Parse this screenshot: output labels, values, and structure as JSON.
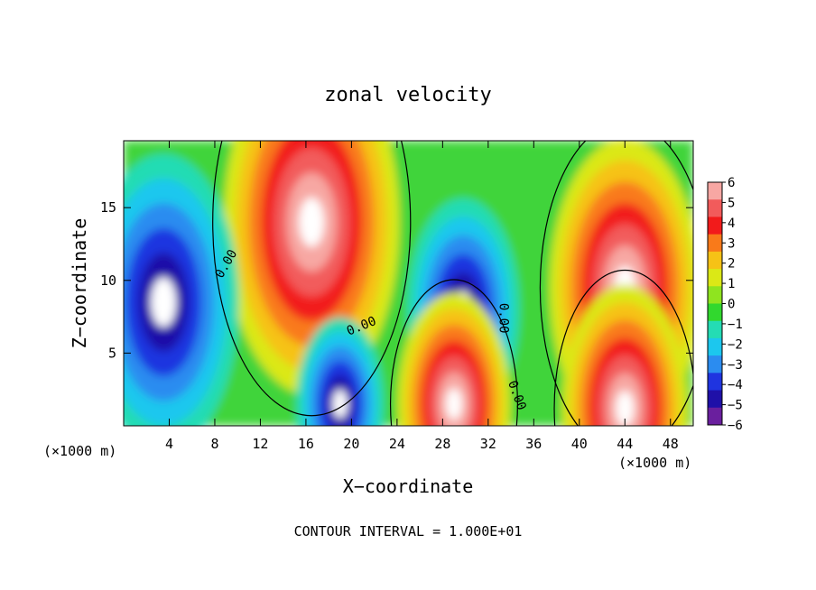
{
  "chart_data": {
    "type": "heatmap",
    "title": "zonal velocity",
    "xlabel": "X−coordinate",
    "ylabel": "Z−coordinate",
    "x_unit": "(×1000 m)",
    "x_unit_right": "(×1000 m)",
    "footer": "CONTOUR INTERVAL = 1.000E+01",
    "xlim": [
      0,
      50
    ],
    "ylim": [
      0,
      19.6
    ],
    "x_ticks": [
      4,
      8,
      12,
      16,
      20,
      24,
      28,
      32,
      36,
      40,
      44,
      48
    ],
    "x_tick_labels": [
      "4",
      "8",
      "12",
      "16",
      "20",
      "24",
      "28",
      "32",
      "36",
      "40",
      "44",
      "48"
    ],
    "y_ticks": [
      5,
      10,
      15
    ],
    "y_tick_labels": [
      "5",
      "10",
      "15"
    ],
    "contour_labels": [
      {
        "text": "0.00",
        "x": 9.3,
        "y": 11.0,
        "angle": -60
      },
      {
        "text": "0.00",
        "x": 21.0,
        "y": 6.6,
        "angle": -22
      },
      {
        "text": "0.00",
        "x": 33.0,
        "y": 7.4,
        "angle": 90
      },
      {
        "text": "0.00",
        "x": 34.2,
        "y": 2.0,
        "angle": 70
      }
    ],
    "colorbar": {
      "values": [
        6,
        5,
        4,
        3,
        2,
        1,
        0,
        -1,
        -2,
        -3,
        -4,
        -5,
        -6
      ],
      "labels": [
        "6",
        "5",
        "4",
        "3",
        "2",
        "1",
        "0",
        "−1",
        "−2",
        "−3",
        "−4",
        "−5",
        "−6"
      ],
      "colors": [
        "#f7a7a3",
        "#f25b5b",
        "#f21b1b",
        "#f97a1a",
        "#f6c216",
        "#dbe816",
        "#8fe41f",
        "#31d82e",
        "#24dcb4",
        "#1cc7ee",
        "#2b8cf0",
        "#1f34e0",
        "#1f10a8",
        "#6a1f9e"
      ]
    },
    "value_range": [
      -6,
      6
    ],
    "note_saturated": "white regions exceed ±6",
    "field_features": [
      {
        "sign": "positive",
        "x": 16.5,
        "z": 14,
        "amp": 14
      },
      {
        "sign": "positive",
        "x": 44,
        "z": 9.5,
        "amp": 12
      },
      {
        "sign": "negative",
        "x": 3.5,
        "z": 8.5,
        "amp": 12
      },
      {
        "sign": "negative",
        "x": 29.8,
        "z": 8,
        "amp": 9
      },
      {
        "sign": "positive",
        "x": 29,
        "z": 1.5,
        "amp": 9
      },
      {
        "sign": "positive",
        "x": 44,
        "z": 1.2,
        "amp": 10
      },
      {
        "sign": "negative",
        "x": 19,
        "z": 1.5,
        "amp": 7
      }
    ]
  }
}
